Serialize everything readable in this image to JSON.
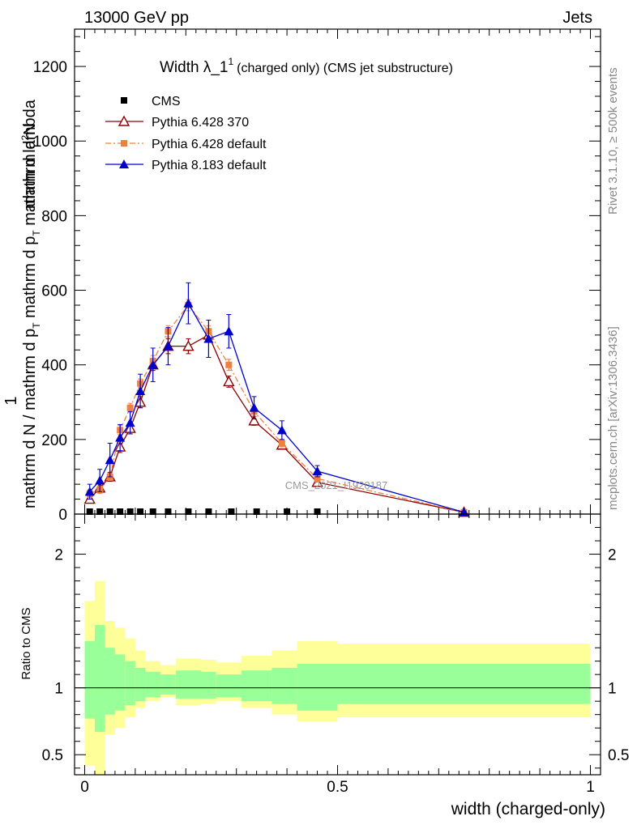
{
  "header": {
    "left_label": "13000 GeV pp",
    "right_label": "Jets"
  },
  "side_labels": {
    "rivet": "Rivet 3.1.10, ≥ 500k events",
    "mcplots": "mcplots.cern.ch [arXiv:1306.3436]"
  },
  "watermark": "CMS_2021_I1920187",
  "chart_data": [
    {
      "type": "line",
      "panel": "main",
      "title_main": "Width λ_1",
      "title_sup": "1",
      "title_rest": "(charged only) (CMS jet substructure)",
      "xlabel": "width (charged-only)",
      "ylabel_top": "1",
      "ylabel_num": "mathrm d",
      "ylabel_num_sup": "2",
      "ylabel_num2": "N",
      "ylabel_den": "mathrm d N / mathrm d p",
      "ylabel_den_sub": "T",
      "ylabel_den2": " mathrm d p",
      "ylabel_den2_sub": "T",
      "ylabel_den3": " mathrm d lambda",
      "xlim": [
        -0.02,
        1.02
      ],
      "ylim": [
        0,
        1300
      ],
      "yticks": [
        0,
        200,
        400,
        600,
        800,
        1000,
        1200
      ],
      "ytick_labels": [
        "0",
        "200",
        "400",
        "600",
        "800",
        "1000",
        "1200"
      ],
      "legend": [
        "CMS",
        "Pythia 6.428 370",
        "Pythia 6.428 default",
        "Pythia 8.183 default"
      ],
      "series": [
        {
          "name": "CMS",
          "color": "#000000",
          "marker": "square",
          "x": [
            0.01,
            0.03,
            0.05,
            0.07,
            0.09,
            0.11,
            0.135,
            0.165,
            0.205,
            0.245,
            0.29,
            0.34,
            0.4,
            0.46
          ],
          "y": [
            2,
            2,
            2,
            2,
            3,
            3,
            3,
            3,
            3,
            3,
            3,
            2,
            2,
            1
          ]
        },
        {
          "name": "Pythia 6.428 370",
          "color": "#8b0000",
          "marker": "open-triangle",
          "x": [
            0.01,
            0.03,
            0.05,
            0.07,
            0.09,
            0.11,
            0.135,
            0.165,
            0.205,
            0.245,
            0.285,
            0.335,
            0.39,
            0.46,
            0.75
          ],
          "y": [
            40,
            70,
            100,
            180,
            230,
            300,
            400,
            450,
            450,
            480,
            355,
            250,
            185,
            85,
            5
          ],
          "err": [
            10,
            12,
            12,
            15,
            15,
            15,
            15,
            20,
            20,
            15,
            15,
            12,
            10,
            8,
            2
          ]
        },
        {
          "name": "Pythia 6.428 default",
          "color": "#f08040",
          "marker": "square",
          "x": [
            0.01,
            0.03,
            0.05,
            0.07,
            0.09,
            0.11,
            0.135,
            0.165,
            0.205,
            0.245,
            0.285,
            0.335,
            0.39,
            0.46,
            0.75
          ],
          "y": [
            55,
            65,
            100,
            225,
            285,
            350,
            410,
            490,
            560,
            490,
            400,
            275,
            190,
            95,
            5
          ],
          "err": [
            10,
            10,
            10,
            12,
            12,
            12,
            15,
            15,
            15,
            15,
            15,
            12,
            10,
            8,
            2
          ]
        },
        {
          "name": "Pythia 8.183 default",
          "color": "#0000cc",
          "marker": "triangle",
          "x": [
            0.01,
            0.03,
            0.05,
            0.07,
            0.09,
            0.11,
            0.135,
            0.165,
            0.205,
            0.245,
            0.285,
            0.335,
            0.39,
            0.46,
            0.75
          ],
          "y": [
            60,
            90,
            145,
            205,
            245,
            330,
            400,
            450,
            565,
            470,
            490,
            285,
            225,
            115,
            5
          ],
          "err": [
            20,
            30,
            45,
            35,
            30,
            45,
            45,
            50,
            55,
            50,
            45,
            30,
            25,
            15,
            3
          ]
        }
      ]
    },
    {
      "type": "area",
      "panel": "ratio",
      "ylabel": "Ratio to CMS",
      "xlim": [
        -0.02,
        1.02
      ],
      "ylim": [
        0.35,
        2.3
      ],
      "xticks": [
        0,
        0.5,
        1
      ],
      "xtick_labels": [
        "0",
        "0.5",
        "1"
      ],
      "yticks": [
        0.5,
        1,
        2
      ],
      "ytick_labels": [
        "0.5",
        "1",
        "2"
      ],
      "bin_edges": [
        0,
        0.02,
        0.04,
        0.06,
        0.08,
        0.1,
        0.12,
        0.15,
        0.18,
        0.23,
        0.26,
        0.31,
        0.37,
        0.42,
        0.5,
        1.0
      ],
      "yellow_band_hi": [
        1.65,
        1.8,
        1.5,
        1.45,
        1.37,
        1.28,
        1.2,
        1.17,
        1.22,
        1.21,
        1.19,
        1.24,
        1.28,
        1.35,
        1.33
      ],
      "yellow_band_lo": [
        0.42,
        0.35,
        0.65,
        0.7,
        0.78,
        0.85,
        0.9,
        0.93,
        0.87,
        0.88,
        0.9,
        0.85,
        0.8,
        0.75,
        0.78
      ],
      "green_band_hi": [
        1.35,
        1.47,
        1.3,
        1.25,
        1.2,
        1.15,
        1.12,
        1.1,
        1.13,
        1.12,
        1.1,
        1.13,
        1.15,
        1.18,
        1.18
      ],
      "green_band_lo": [
        0.77,
        0.67,
        0.8,
        0.83,
        0.87,
        0.9,
        0.93,
        0.95,
        0.92,
        0.92,
        0.93,
        0.9,
        0.88,
        0.83,
        0.88
      ],
      "yellow_color": "#ffff99",
      "green_color": "#99ff99"
    }
  ]
}
